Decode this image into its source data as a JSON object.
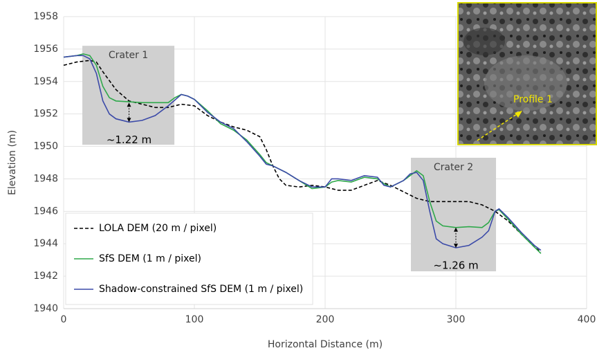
{
  "chart_data": {
    "type": "line",
    "xlabel": "Horizontal Distance (m)",
    "ylabel": "Elevation (m)",
    "xlim": [
      0,
      400
    ],
    "xticks": [
      0,
      100,
      200,
      300,
      400
    ],
    "ylim": [
      1940,
      1958
    ],
    "yticks": [
      1940,
      1942,
      1944,
      1946,
      1948,
      1950,
      1952,
      1954,
      1956,
      1958
    ],
    "grid": true,
    "legend": "lower left",
    "series": [
      {
        "name": "LOLA DEM (20 m / pixel)",
        "color": "#000000",
        "linestyle": "dashed",
        "x": [
          0,
          10,
          20,
          25,
          30,
          40,
          50,
          60,
          70,
          80,
          90,
          100,
          110,
          120,
          130,
          140,
          150,
          155,
          160,
          165,
          170,
          180,
          190,
          200,
          210,
          220,
          230,
          240,
          250,
          260,
          270,
          280,
          290,
          300,
          310,
          320,
          330,
          340,
          350,
          360,
          365
        ],
        "values": [
          1955.0,
          1955.2,
          1955.3,
          1955.2,
          1954.6,
          1953.5,
          1952.8,
          1952.6,
          1952.4,
          1952.4,
          1952.6,
          1952.5,
          1951.9,
          1951.5,
          1951.2,
          1951.0,
          1950.6,
          1949.8,
          1948.8,
          1948.0,
          1947.6,
          1947.5,
          1947.6,
          1947.5,
          1947.3,
          1947.3,
          1947.6,
          1947.9,
          1947.6,
          1947.2,
          1946.8,
          1946.6,
          1946.6,
          1946.6,
          1946.6,
          1946.4,
          1946.0,
          1945.4,
          1944.6,
          1943.8,
          1943.5
        ]
      },
      {
        "name": "SfS DEM (1 m / pixel)",
        "color": "#2ea84a",
        "linestyle": "solid",
        "x": [
          0,
          10,
          15,
          20,
          25,
          30,
          35,
          40,
          50,
          60,
          70,
          80,
          85,
          90,
          95,
          100,
          110,
          120,
          130,
          140,
          150,
          155,
          160,
          170,
          180,
          190,
          200,
          205,
          210,
          220,
          230,
          240,
          245,
          250,
          260,
          265,
          270,
          275,
          280,
          285,
          290,
          300,
          310,
          320,
          325,
          330,
          333,
          340,
          350,
          360,
          365
        ],
        "values": [
          1955.5,
          1955.6,
          1955.7,
          1955.6,
          1955.0,
          1953.7,
          1953.0,
          1952.8,
          1952.75,
          1952.7,
          1952.7,
          1952.7,
          1953.0,
          1953.2,
          1953.1,
          1952.9,
          1952.2,
          1951.4,
          1951.0,
          1950.4,
          1949.5,
          1949.0,
          1948.8,
          1948.4,
          1947.9,
          1947.4,
          1947.5,
          1947.8,
          1947.9,
          1947.8,
          1948.1,
          1948.0,
          1947.7,
          1947.5,
          1947.9,
          1948.2,
          1948.5,
          1948.2,
          1946.6,
          1945.4,
          1945.1,
          1945.0,
          1945.05,
          1945.0,
          1945.3,
          1946.0,
          1946.1,
          1945.5,
          1944.6,
          1943.8,
          1943.4
        ]
      },
      {
        "name": "Shadow-constrained SfS DEM (1 m / pixel)",
        "color": "#3b4aa8",
        "linestyle": "solid",
        "x": [
          0,
          10,
          15,
          20,
          25,
          30,
          35,
          40,
          50,
          60,
          70,
          80,
          90,
          95,
          100,
          110,
          120,
          130,
          140,
          150,
          155,
          160,
          170,
          180,
          190,
          200,
          205,
          210,
          220,
          230,
          240,
          245,
          250,
          260,
          265,
          270,
          275,
          280,
          285,
          290,
          300,
          310,
          320,
          325,
          330,
          333,
          340,
          350,
          360,
          365
        ],
        "values": [
          1955.5,
          1955.6,
          1955.6,
          1955.4,
          1954.5,
          1952.8,
          1952.0,
          1951.7,
          1951.5,
          1951.6,
          1951.9,
          1952.5,
          1953.2,
          1953.1,
          1952.9,
          1952.1,
          1951.5,
          1951.1,
          1950.3,
          1949.4,
          1948.9,
          1948.8,
          1948.4,
          1947.9,
          1947.5,
          1947.5,
          1948.0,
          1948.0,
          1947.9,
          1948.2,
          1948.1,
          1947.6,
          1947.5,
          1947.9,
          1948.3,
          1948.4,
          1947.9,
          1946.0,
          1944.3,
          1944.0,
          1943.75,
          1943.9,
          1944.4,
          1944.8,
          1946.0,
          1946.15,
          1945.6,
          1944.7,
          1943.9,
          1943.6
        ]
      }
    ],
    "regions": [
      {
        "label": "Crater 1",
        "x": [
          14.3,
          84.7
        ],
        "y": [
          1950.1,
          1956.2
        ]
      },
      {
        "label": "Crater 2",
        "x": [
          265.6,
          330.7
        ],
        "y": [
          1942.3,
          1949.3
        ]
      }
    ],
    "annotations": [
      {
        "text": "~1.22 m",
        "x": 50,
        "y": [
          1951.5,
          1952.7
        ]
      },
      {
        "text": "~1.26 m",
        "x": 300,
        "y": [
          1943.75,
          1945.0
        ]
      }
    ],
    "inset_label": "Profile 1"
  }
}
